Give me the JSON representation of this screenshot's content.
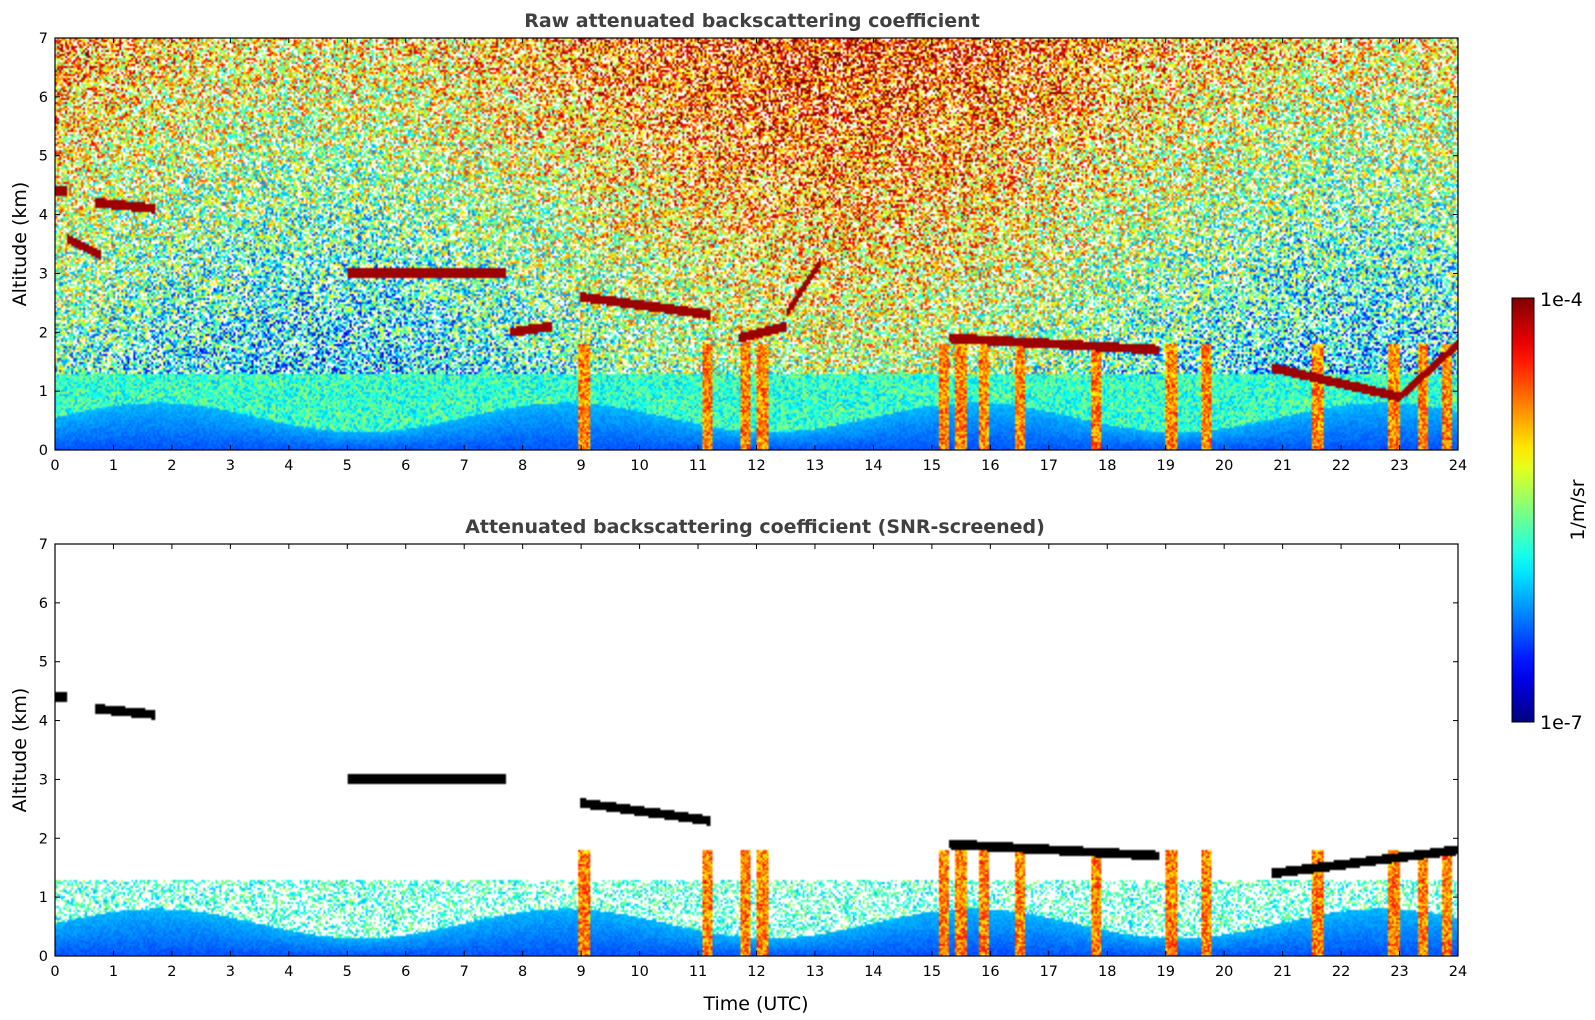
{
  "chart_data": [
    {
      "type": "heatmap",
      "title": "Raw attenuated backscattering coefficient",
      "xlabel": "",
      "ylabel": "Altitude (km)",
      "xlim": [
        0,
        24
      ],
      "ylim": [
        0,
        7
      ],
      "xticks": [
        "0",
        "1",
        "2",
        "3",
        "4",
        "5",
        "6",
        "7",
        "8",
        "9",
        "10",
        "11",
        "12",
        "13",
        "14",
        "15",
        "16",
        "17",
        "18",
        "19",
        "20",
        "21",
        "22",
        "23",
        "24"
      ],
      "yticks": [
        "0",
        "1",
        "2",
        "3",
        "4",
        "5",
        "6",
        "7"
      ],
      "colormap": "jet",
      "color_scale": "log",
      "screened": false,
      "layers": [
        {
          "name": "cloud_layer",
          "x": [
            0,
            0.2
          ],
          "y": [
            4.4,
            4.4
          ]
        },
        {
          "name": "cloud_layer",
          "x": [
            0.7,
            1.7
          ],
          "y": [
            4.2,
            4.1
          ]
        },
        {
          "name": "cloud_layer",
          "x": [
            0.2,
            0.8
          ],
          "y": [
            3.6,
            3.3
          ]
        },
        {
          "name": "cloud_layer",
          "x": [
            5.0,
            7.7
          ],
          "y": [
            3.0,
            3.0
          ]
        },
        {
          "name": "cloud_layer",
          "x": [
            7.8,
            8.5
          ],
          "y": [
            2.0,
            2.1
          ]
        },
        {
          "name": "cloud_layer",
          "x": [
            9.0,
            11.2
          ],
          "y": [
            2.6,
            2.3
          ]
        },
        {
          "name": "cloud_layer",
          "x": [
            11.7,
            12.5
          ],
          "y": [
            1.9,
            2.1
          ]
        },
        {
          "name": "cloud_layer",
          "x": [
            12.5,
            13.1
          ],
          "y": [
            2.3,
            3.2
          ]
        },
        {
          "name": "cloud_layer",
          "x": [
            15.3,
            18.9
          ],
          "y": [
            1.9,
            1.7
          ]
        },
        {
          "name": "cloud_layer",
          "x": [
            20.8,
            23.0
          ],
          "y": [
            1.4,
            0.9
          ]
        },
        {
          "name": "cloud_layer",
          "x": [
            23.0,
            24.0
          ],
          "y": [
            0.9,
            1.8
          ]
        }
      ]
    },
    {
      "type": "heatmap",
      "title": "Attenuated backscattering coefficient (SNR-screened)",
      "xlabel": "Time (UTC)",
      "ylabel": "Altitude (km)",
      "xlim": [
        0,
        24
      ],
      "ylim": [
        0,
        7
      ],
      "xticks": [
        "0",
        "1",
        "2",
        "3",
        "4",
        "5",
        "6",
        "7",
        "8",
        "9",
        "10",
        "11",
        "12",
        "13",
        "14",
        "15",
        "16",
        "17",
        "18",
        "19",
        "20",
        "21",
        "22",
        "23",
        "24"
      ],
      "yticks": [
        "0",
        "1",
        "2",
        "3",
        "4",
        "5",
        "6",
        "7"
      ],
      "colormap": "jet",
      "color_scale": "log",
      "screened": true,
      "layers": [
        {
          "name": "cloud_layer",
          "x": [
            0,
            0.2
          ],
          "y": [
            4.4,
            4.4
          ]
        },
        {
          "name": "cloud_layer",
          "x": [
            0.7,
            1.7
          ],
          "y": [
            4.2,
            4.1
          ]
        },
        {
          "name": "cloud_layer",
          "x": [
            5.0,
            7.7
          ],
          "y": [
            3.0,
            3.0
          ]
        },
        {
          "name": "cloud_layer",
          "x": [
            9.0,
            11.2
          ],
          "y": [
            2.6,
            2.3
          ]
        },
        {
          "name": "cloud_layer",
          "x": [
            15.3,
            18.9
          ],
          "y": [
            1.9,
            1.7
          ]
        },
        {
          "name": "cloud_layer",
          "x": [
            20.8,
            24.0
          ],
          "y": [
            1.4,
            1.8
          ]
        }
      ]
    }
  ],
  "colorbar": {
    "label": "1/m/sr",
    "max_label": "1e-4",
    "min_label": "1e-7",
    "min": 1e-07,
    "max": 0.0001,
    "scale": "log",
    "colormap": "jet"
  }
}
